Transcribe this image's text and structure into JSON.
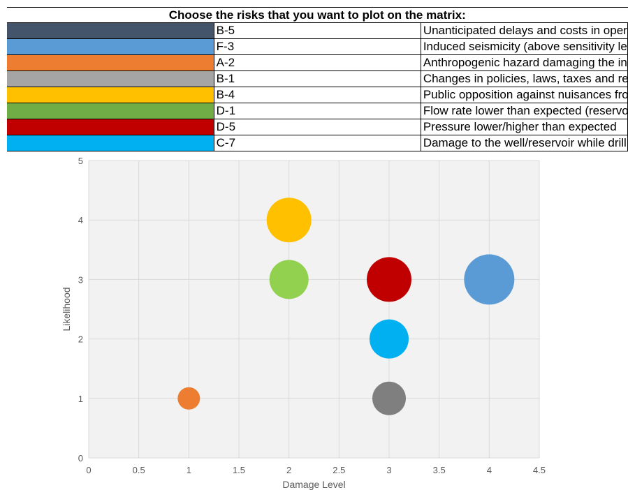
{
  "table": {
    "header": "Choose the risks that you want to plot on the matrix:",
    "rows": [
      {
        "code": "B-5",
        "description": "Unanticipated delays and costs in operations (materials, services, maintenance)",
        "color": "#44546a"
      },
      {
        "code": "F-3",
        "description": "Induced seismicity (above sensitivity level)",
        "color": "#5b9bd5"
      },
      {
        "code": "A-2",
        "description": "Anthropogenic hazard damaging the infrastructure",
        "color": "#ed7d31"
      },
      {
        "code": "B-1",
        "description": "Changes in policies, laws, taxes and regulations put development/economy in jeopardy",
        "color": "#a5a5a5"
      },
      {
        "code": "B-4",
        "description": "Public opposition against nuisances from the exploitation",
        "color": "#ffc000"
      },
      {
        "code": "D-1",
        "description": "Flow rate lower than expected (reservoir)",
        "color": "#70ad47"
      },
      {
        "code": "D-5",
        "description": "Pressure lower/higher than expected",
        "color": "#c00000"
      },
      {
        "code": "C-7",
        "description": "Damage to the well/reservoir while drilling or testing",
        "color": "#00b0f0"
      }
    ]
  },
  "chart_data": {
    "type": "scatter",
    "xlabel": "Damage Level",
    "ylabel": "Likelihood",
    "xlim": [
      0,
      4.5
    ],
    "ylim": [
      0,
      5
    ],
    "xticks": [
      0,
      0.5,
      1,
      1.5,
      2,
      2.5,
      3,
      3.5,
      4,
      4.5
    ],
    "xtick_labels": [
      "0",
      "0.5",
      "1",
      "1.5",
      "2",
      "2.5",
      "3",
      "3.5",
      "4",
      "4.5"
    ],
    "yticks": [
      0,
      1,
      2,
      3,
      4,
      5
    ],
    "ytick_labels": [
      "0",
      "1",
      "2",
      "3",
      "4",
      "5"
    ],
    "grid": true,
    "points": [
      {
        "id": "B-4",
        "x": 2,
        "y": 4,
        "size": 4,
        "color": "#ffc000"
      },
      {
        "id": "D-1",
        "x": 2,
        "y": 3,
        "size": 3.5,
        "color": "#92d050"
      },
      {
        "id": "D-5",
        "x": 3,
        "y": 3,
        "size": 4,
        "color": "#c00000"
      },
      {
        "id": "F-3",
        "x": 4,
        "y": 3,
        "size": 4.5,
        "color": "#5b9bd5"
      },
      {
        "id": "C-7",
        "x": 3,
        "y": 2,
        "size": 3.5,
        "color": "#00b0f0"
      },
      {
        "id": "B-1",
        "x": 3,
        "y": 1,
        "size": 3,
        "color": "#7f7f7f"
      },
      {
        "id": "A-2",
        "x": 1,
        "y": 1,
        "size": 2,
        "color": "#ed7d31"
      }
    ]
  }
}
